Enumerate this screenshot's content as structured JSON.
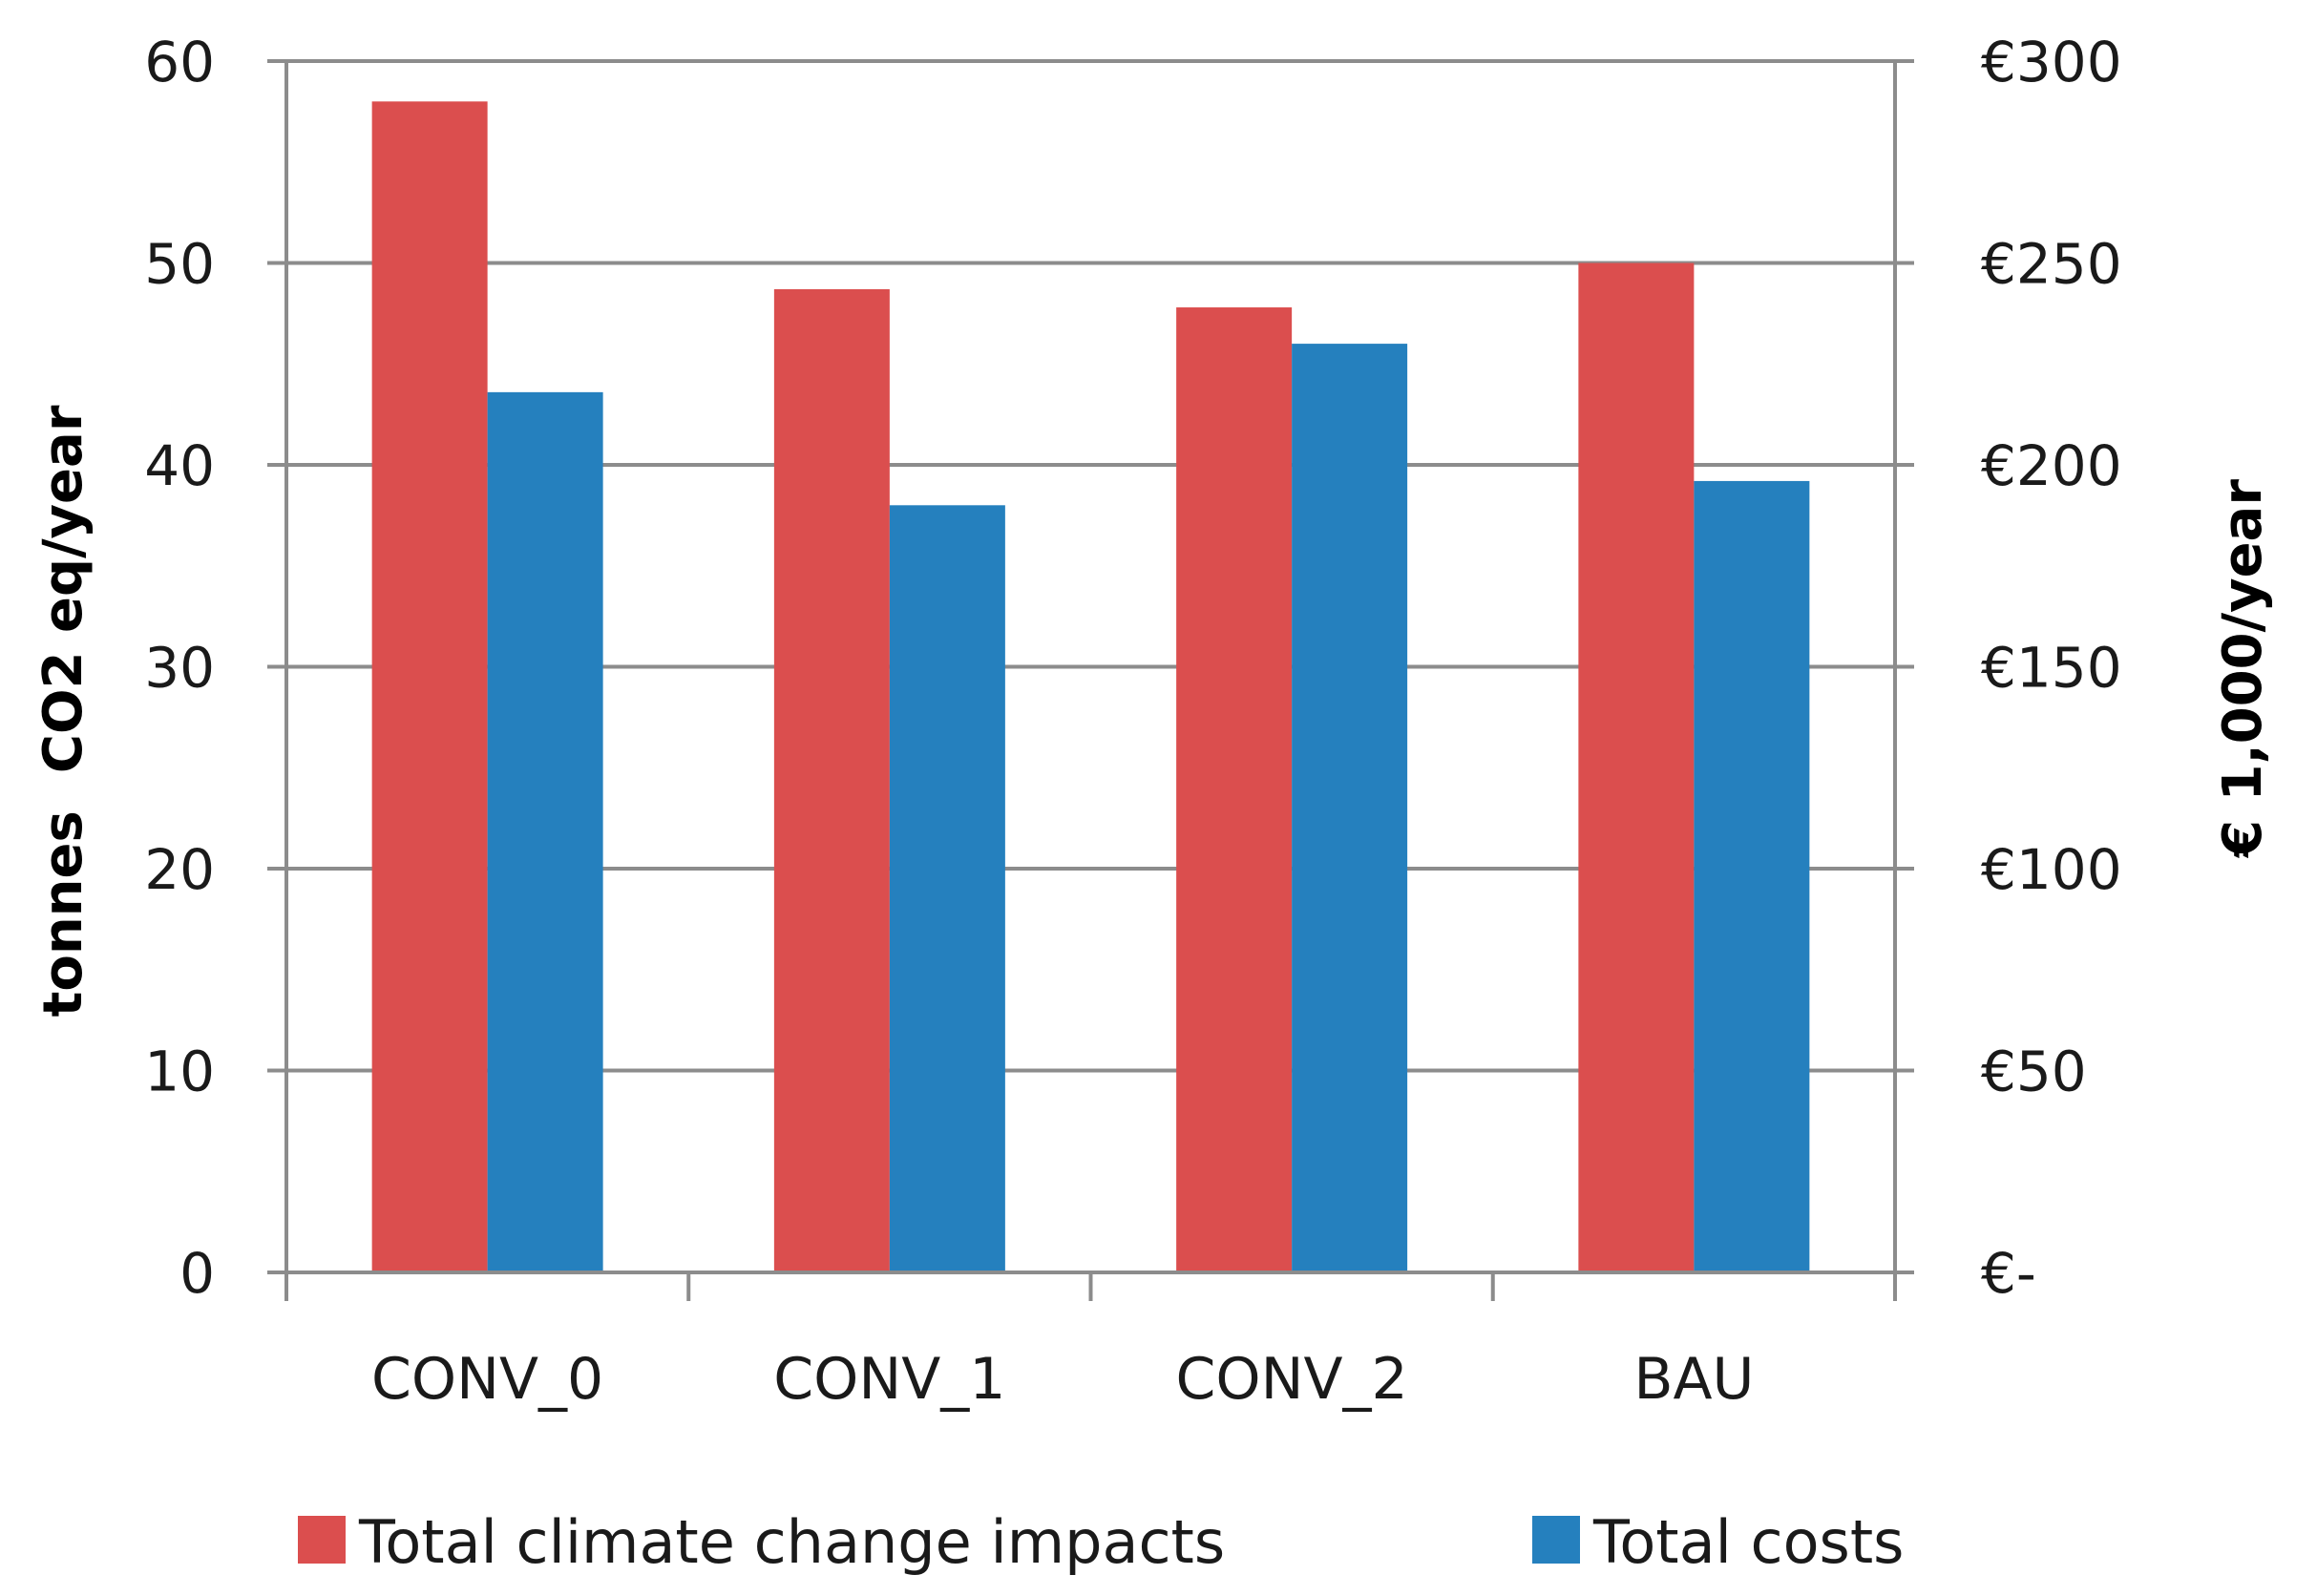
{
  "chart_data": {
    "type": "bar",
    "categories": [
      "CONV_0",
      "CONV_1",
      "CONV_2",
      "BAU"
    ],
    "series": [
      {
        "name": "Total climate change impacts",
        "axis": "left",
        "color": "#DB4E4E",
        "values": [
          58,
          48.7,
          47.8,
          50
        ]
      },
      {
        "name": "Total costs",
        "axis": "right",
        "color": "#2580BE",
        "values": [
          218,
          190,
          230,
          196
        ]
      }
    ],
    "y_left": {
      "label": "tonnes  CO2 eq/year",
      "lim": [
        0,
        60
      ],
      "ticks": [
        0,
        10,
        20,
        30,
        40,
        50,
        60
      ],
      "tick_labels": [
        "0",
        "10",
        "20",
        "30",
        "40",
        "50",
        "60"
      ]
    },
    "y_right": {
      "label": "€ 1,000/year",
      "lim": [
        0,
        300
      ],
      "ticks": [
        0,
        50,
        100,
        150,
        200,
        250,
        300
      ],
      "tick_labels": [
        "€-",
        "€50",
        "€100",
        "€150",
        "€200",
        "€250",
        "€300"
      ]
    },
    "grid": true,
    "legend": "bottom",
    "gridline_color": "#8C8C8C"
  }
}
